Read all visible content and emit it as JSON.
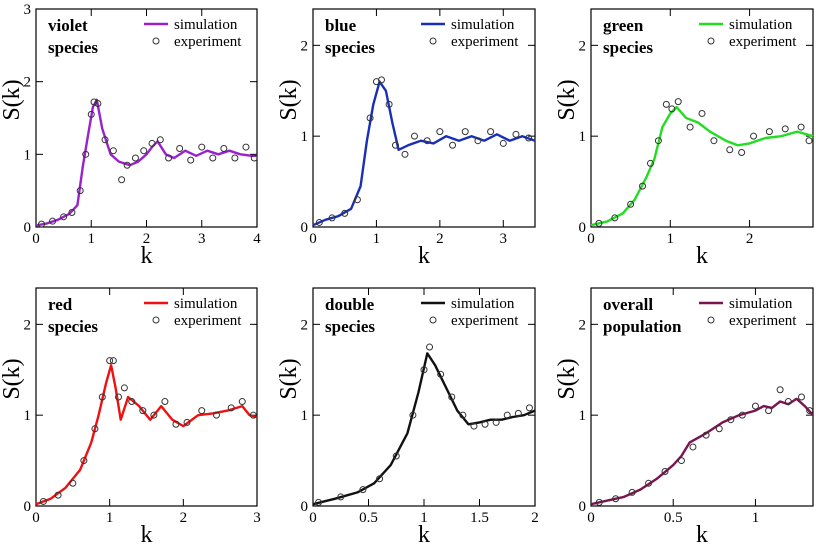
{
  "chart_data": [
    {
      "type": "line",
      "title_lines": [
        "violet",
        "species"
      ],
      "xlabel": "k",
      "ylabel": "S(k)",
      "xlim": [
        0,
        4
      ],
      "ylim": [
        0,
        3
      ],
      "xticks": [
        "0",
        "1",
        "2",
        "3",
        "4"
      ],
      "yticks": [
        "0",
        "1",
        "2",
        "3"
      ],
      "color": "#9922cc",
      "legend": [
        "simulation",
        "experiment"
      ],
      "series": [
        {
          "name": "simulation",
          "x": [
            0,
            0.2,
            0.4,
            0.6,
            0.75,
            0.85,
            0.95,
            1.03,
            1.1,
            1.2,
            1.35,
            1.5,
            1.7,
            1.85,
            2.0,
            2.1,
            2.2,
            2.35,
            2.5,
            2.7,
            2.9,
            3.1,
            3.3,
            3.5,
            3.7,
            3.9,
            4.0
          ],
          "y": [
            0.02,
            0.05,
            0.1,
            0.18,
            0.3,
            0.85,
            1.3,
            1.65,
            1.75,
            1.35,
            1.0,
            0.9,
            0.85,
            0.9,
            1.0,
            1.1,
            1.18,
            1.0,
            0.95,
            1.05,
            0.98,
            1.05,
            1.0,
            1.05,
            1.0,
            0.98,
            0.98
          ]
        },
        {
          "name": "experiment",
          "x": [
            0.1,
            0.3,
            0.5,
            0.65,
            0.8,
            0.9,
            1.0,
            1.05,
            1.12,
            1.25,
            1.4,
            1.55,
            1.65,
            1.8,
            1.95,
            2.1,
            2.25,
            2.4,
            2.6,
            2.8,
            3.0,
            3.2,
            3.4,
            3.6,
            3.8,
            3.95
          ],
          "y": [
            0.04,
            0.08,
            0.14,
            0.2,
            0.5,
            1.0,
            1.55,
            1.72,
            1.7,
            1.2,
            1.05,
            0.65,
            0.85,
            0.95,
            1.05,
            1.15,
            1.2,
            0.95,
            1.08,
            0.92,
            1.1,
            0.95,
            1.08,
            0.95,
            1.1,
            0.95
          ]
        }
      ]
    },
    {
      "type": "line",
      "title_lines": [
        "blue",
        "species"
      ],
      "xlabel": "k",
      "ylabel": "S(k)",
      "xlim": [
        0,
        3.5
      ],
      "ylim": [
        0,
        2.4
      ],
      "xticks": [
        "0",
        "1",
        "2",
        "3"
      ],
      "yticks": [
        "0",
        "1",
        "2"
      ],
      "color": "#1a2fb8",
      "legend": [
        "simulation",
        "experiment"
      ],
      "series": [
        {
          "name": "simulation",
          "x": [
            0,
            0.2,
            0.4,
            0.6,
            0.75,
            0.85,
            0.95,
            1.05,
            1.15,
            1.25,
            1.35,
            1.5,
            1.7,
            1.9,
            2.1,
            2.3,
            2.5,
            2.7,
            2.9,
            3.1,
            3.3,
            3.5
          ],
          "y": [
            0.02,
            0.08,
            0.12,
            0.2,
            0.45,
            0.95,
            1.35,
            1.6,
            1.5,
            1.15,
            0.85,
            0.9,
            0.95,
            0.92,
            1.0,
            0.95,
            1.0,
            0.95,
            1.02,
            0.95,
            1.0,
            0.95
          ]
        },
        {
          "name": "experiment",
          "x": [
            0.1,
            0.3,
            0.5,
            0.7,
            0.9,
            1.0,
            1.08,
            1.2,
            1.3,
            1.45,
            1.6,
            1.8,
            2.0,
            2.2,
            2.4,
            2.6,
            2.8,
            3.0,
            3.2,
            3.4
          ],
          "y": [
            0.05,
            0.1,
            0.15,
            0.3,
            1.2,
            1.6,
            1.62,
            1.35,
            0.9,
            0.8,
            1.0,
            0.95,
            1.05,
            0.9,
            1.05,
            0.95,
            1.05,
            0.92,
            1.02,
            0.98
          ]
        }
      ]
    },
    {
      "type": "line",
      "title_lines": [
        "green",
        "species"
      ],
      "xlabel": "k",
      "ylabel": "S(k)",
      "xlim": [
        0,
        2.8
      ],
      "ylim": [
        0,
        2.4
      ],
      "xticks": [
        "0",
        "1",
        "2"
      ],
      "yticks": [
        "0",
        "1",
        "2"
      ],
      "color": "#22dd22",
      "legend": [
        "simulation",
        "experiment"
      ],
      "series": [
        {
          "name": "simulation",
          "x": [
            0,
            0.2,
            0.4,
            0.55,
            0.7,
            0.8,
            0.9,
            1.0,
            1.08,
            1.2,
            1.35,
            1.5,
            1.7,
            1.85,
            2.0,
            2.2,
            2.4,
            2.6,
            2.8
          ],
          "y": [
            0.02,
            0.06,
            0.15,
            0.3,
            0.55,
            0.75,
            1.1,
            1.25,
            1.32,
            1.2,
            1.15,
            1.05,
            0.95,
            0.9,
            0.92,
            0.98,
            1.0,
            1.05,
            1.0
          ]
        },
        {
          "name": "experiment",
          "x": [
            0.1,
            0.3,
            0.5,
            0.65,
            0.75,
            0.85,
            0.95,
            1.02,
            1.1,
            1.25,
            1.4,
            1.55,
            1.75,
            1.9,
            2.05,
            2.25,
            2.45,
            2.65,
            2.75
          ],
          "y": [
            0.04,
            0.1,
            0.25,
            0.45,
            0.7,
            0.95,
            1.35,
            1.3,
            1.38,
            1.1,
            1.25,
            0.95,
            0.85,
            0.82,
            1.0,
            1.05,
            1.08,
            1.1,
            0.95
          ]
        }
      ]
    },
    {
      "type": "line",
      "title_lines": [
        "red",
        "species"
      ],
      "xlabel": "k",
      "ylabel": "S(k)",
      "xlim": [
        0,
        3
      ],
      "ylim": [
        0,
        2.4
      ],
      "xticks": [
        "0",
        "1",
        "2",
        "3"
      ],
      "yticks": [
        "0",
        "1",
        "2"
      ],
      "color": "#ee1111",
      "legend": [
        "simulation",
        "experiment"
      ],
      "series": [
        {
          "name": "simulation",
          "x": [
            0,
            0.2,
            0.4,
            0.6,
            0.75,
            0.85,
            0.95,
            1.02,
            1.08,
            1.15,
            1.25,
            1.4,
            1.55,
            1.7,
            1.85,
            2.0,
            2.2,
            2.4,
            2.6,
            2.8,
            2.9,
            3.0
          ],
          "y": [
            0.02,
            0.08,
            0.2,
            0.4,
            0.7,
            1.0,
            1.35,
            1.55,
            1.3,
            0.95,
            1.2,
            1.1,
            0.95,
            1.1,
            0.95,
            0.88,
            1.0,
            1.02,
            1.05,
            1.1,
            1.0,
            0.98
          ]
        },
        {
          "name": "experiment",
          "x": [
            0.1,
            0.3,
            0.5,
            0.65,
            0.8,
            0.9,
            1.0,
            1.05,
            1.12,
            1.2,
            1.3,
            1.45,
            1.6,
            1.75,
            1.9,
            2.05,
            2.25,
            2.45,
            2.65,
            2.8,
            2.95
          ],
          "y": [
            0.05,
            0.12,
            0.25,
            0.5,
            0.85,
            1.2,
            1.6,
            1.6,
            1.2,
            1.3,
            1.15,
            1.05,
            1.0,
            1.15,
            0.9,
            0.92,
            1.05,
            1.0,
            1.08,
            1.15,
            1.0
          ]
        }
      ]
    },
    {
      "type": "line",
      "title_lines": [
        "double",
        "species"
      ],
      "xlabel": "k",
      "ylabel": "S(k)",
      "xlim": [
        0,
        2
      ],
      "ylim": [
        0,
        2.4
      ],
      "xticks": [
        "0",
        "0.5",
        "1",
        "1.5",
        "2"
      ],
      "yticks": [
        "0",
        "1",
        "2"
      ],
      "color": "#111111",
      "legend": [
        "simulation",
        "experiment"
      ],
      "series": [
        {
          "name": "simulation",
          "x": [
            0,
            0.2,
            0.4,
            0.55,
            0.7,
            0.85,
            0.95,
            1.03,
            1.1,
            1.2,
            1.3,
            1.4,
            1.5,
            1.6,
            1.7,
            1.8,
            1.9,
            2.0
          ],
          "y": [
            0.02,
            0.08,
            0.15,
            0.25,
            0.45,
            0.8,
            1.25,
            1.68,
            1.55,
            1.3,
            1.05,
            0.9,
            0.92,
            0.95,
            0.95,
            0.98,
            1.0,
            1.05
          ]
        },
        {
          "name": "experiment",
          "x": [
            0.05,
            0.25,
            0.45,
            0.6,
            0.75,
            0.9,
            1.0,
            1.05,
            1.15,
            1.25,
            1.35,
            1.45,
            1.55,
            1.65,
            1.75,
            1.85,
            1.95
          ],
          "y": [
            0.04,
            0.1,
            0.18,
            0.3,
            0.55,
            1.0,
            1.5,
            1.75,
            1.45,
            1.2,
            1.0,
            0.88,
            0.9,
            0.92,
            1.0,
            1.02,
            1.08
          ]
        }
      ]
    },
    {
      "type": "line",
      "title_lines": [
        "overall",
        "population"
      ],
      "xlabel": "k",
      "ylabel": "S(k)",
      "xlim": [
        0,
        1.35
      ],
      "ylim": [
        0,
        2.4
      ],
      "xticks": [
        "0",
        "0.5",
        "1"
      ],
      "yticks": [
        "0",
        "1",
        "2"
      ],
      "color": "#7a1450",
      "legend": [
        "simulation",
        "experiment"
      ],
      "series": [
        {
          "name": "simulation",
          "x": [
            0,
            0.1,
            0.2,
            0.3,
            0.4,
            0.5,
            0.55,
            0.6,
            0.7,
            0.8,
            0.9,
            1.0,
            1.05,
            1.1,
            1.15,
            1.2,
            1.25,
            1.3,
            1.35
          ],
          "y": [
            0.02,
            0.06,
            0.1,
            0.18,
            0.3,
            0.45,
            0.55,
            0.7,
            0.8,
            0.92,
            1.0,
            1.05,
            1.1,
            1.08,
            1.15,
            1.12,
            1.18,
            1.1,
            1.0
          ]
        },
        {
          "name": "experiment",
          "x": [
            0.05,
            0.15,
            0.25,
            0.35,
            0.45,
            0.55,
            0.62,
            0.7,
            0.78,
            0.85,
            0.92,
            1.0,
            1.08,
            1.15,
            1.2,
            1.28,
            1.33
          ],
          "y": [
            0.04,
            0.08,
            0.15,
            0.25,
            0.38,
            0.5,
            0.65,
            0.78,
            0.85,
            0.95,
            1.0,
            1.1,
            1.05,
            1.28,
            1.15,
            1.2,
            1.05
          ]
        }
      ]
    }
  ]
}
